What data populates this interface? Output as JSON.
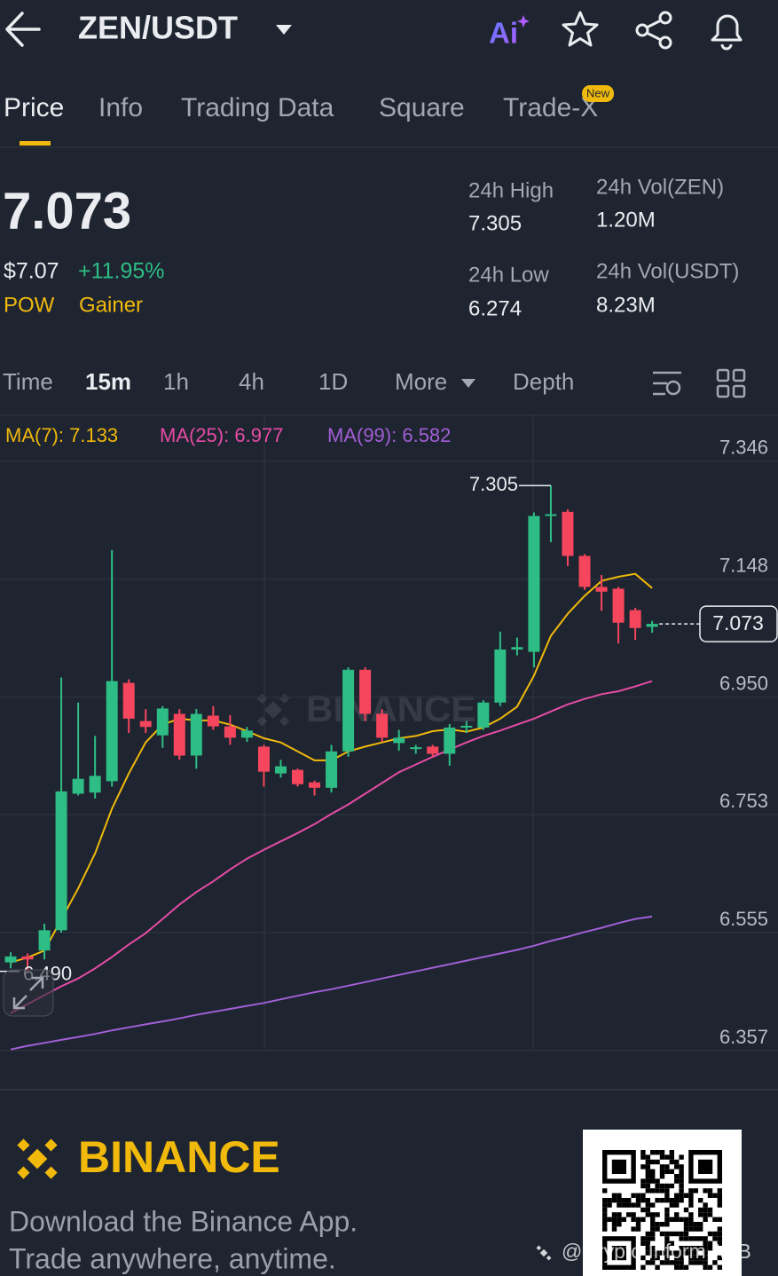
{
  "header": {
    "pair": "ZEN/USDT",
    "ai_label": "Ai"
  },
  "tabs": [
    "Price",
    "Info",
    "Trading Data",
    "Square",
    "Trade-X"
  ],
  "tab_badge": "New",
  "stats": {
    "price": "7.073",
    "fiat_price": "$7.07",
    "change": "+11.95%",
    "tags": [
      "POW",
      "Gainer"
    ],
    "high": {
      "label": "24h High",
      "value": "7.305"
    },
    "low": {
      "label": "24h Low",
      "value": "6.274"
    },
    "vol_base": {
      "label": "24h Vol(ZEN)",
      "value": "1.20M"
    },
    "vol_quote": {
      "label": "24h Vol(USDT)",
      "value": "8.23M"
    }
  },
  "intervals": [
    "Time",
    "15m",
    "1h",
    "4h",
    "1D",
    "More",
    "Depth"
  ],
  "chart_data": {
    "type": "candlestick",
    "watermark": "BINANCE",
    "up_color": "#2ebd85",
    "down_color": "#f6465d",
    "open": [
      6.505,
      6.515,
      6.525,
      6.559,
      6.788,
      6.79,
      6.809,
      6.974,
      6.91,
      6.886,
      6.922,
      6.852,
      6.919,
      6.901,
      6.882,
      6.867,
      6.822,
      6.828,
      6.807,
      6.798,
      6.859,
      6.996,
      6.922,
      6.873,
      6.863,
      6.867,
      6.855,
      6.899,
      6.899,
      6.941,
      7.03,
      7.026,
      7.254,
      7.261,
      7.187,
      7.135,
      7.132,
      7.096,
      7.068
    ],
    "high": [
      6.522,
      6.52,
      6.57,
      6.983,
      6.941,
      6.885,
      7.197,
      6.98,
      6.93,
      6.935,
      6.93,
      6.93,
      6.935,
      6.92,
      6.9,
      6.87,
      6.845,
      6.83,
      6.81,
      6.87,
      7.0,
      7.0,
      6.93,
      6.895,
      6.87,
      6.87,
      6.905,
      6.91,
      6.945,
      7.06,
      7.05,
      7.26,
      7.305,
      7.265,
      7.19,
      7.155,
      7.135,
      7.1,
      7.078
    ],
    "low": [
      6.495,
      6.49,
      6.51,
      6.555,
      6.785,
      6.78,
      6.8,
      6.89,
      6.89,
      6.865,
      6.845,
      6.83,
      6.895,
      6.87,
      6.875,
      6.8,
      6.815,
      6.8,
      6.785,
      6.79,
      6.85,
      6.91,
      6.875,
      6.86,
      6.855,
      6.85,
      6.835,
      6.89,
      6.895,
      6.935,
      7.02,
      7.0,
      7.21,
      7.17,
      7.13,
      7.095,
      7.04,
      7.046,
      7.058
    ],
    "close": [
      6.515,
      6.51,
      6.559,
      6.792,
      6.813,
      6.818,
      6.977,
      6.914,
      6.9,
      6.931,
      6.852,
      6.922,
      6.901,
      6.882,
      6.894,
      6.825,
      6.834,
      6.804,
      6.798,
      6.859,
      6.996,
      6.922,
      6.882,
      6.882,
      6.866,
      6.855,
      6.899,
      6.902,
      6.941,
      7.03,
      7.034,
      7.254,
      7.257,
      7.187,
      7.135,
      7.127,
      7.075,
      7.066,
      7.073
    ],
    "series": [
      {
        "name": "MA(7): 7.133",
        "color": "#f0b90b",
        "values": [
          6.505,
          6.513,
          6.525,
          6.577,
          6.629,
          6.688,
          6.763,
          6.822,
          6.874,
          6.904,
          6.914,
          6.911,
          6.911,
          6.904,
          6.893,
          6.881,
          6.874,
          6.859,
          6.844,
          6.844,
          6.859,
          6.867,
          6.874,
          6.881,
          6.885,
          6.893,
          6.896,
          6.892,
          6.899,
          6.914,
          6.934,
          6.986,
          7.053,
          7.09,
          7.12,
          7.145,
          7.152,
          7.157,
          7.133
        ]
      },
      {
        "name": "MA(25): 6.977",
        "color": "#e64ca6",
        "values": [
          6.42,
          6.435,
          6.45,
          6.465,
          6.478,
          6.495,
          6.514,
          6.535,
          6.554,
          6.578,
          6.602,
          6.623,
          6.641,
          6.661,
          6.679,
          6.694,
          6.708,
          6.722,
          6.737,
          6.754,
          6.77,
          6.788,
          6.806,
          6.824,
          6.837,
          6.85,
          6.862,
          6.874,
          6.885,
          6.894,
          6.904,
          6.914,
          6.926,
          6.938,
          6.947,
          6.955,
          6.96,
          6.968,
          6.977
        ]
      },
      {
        "name": "MA(99): 6.582",
        "color": "#a25fd6",
        "values": [
          6.359,
          6.365,
          6.37,
          6.375,
          6.38,
          6.385,
          6.391,
          6.396,
          6.401,
          6.406,
          6.411,
          6.417,
          6.422,
          6.427,
          6.432,
          6.437,
          6.443,
          6.449,
          6.455,
          6.46,
          6.466,
          6.472,
          6.478,
          6.484,
          6.49,
          6.496,
          6.502,
          6.508,
          6.514,
          6.52,
          6.526,
          6.533,
          6.541,
          6.548,
          6.556,
          6.563,
          6.571,
          6.578,
          6.582
        ]
      }
    ],
    "ylim": [
      6.357,
      7.42
    ],
    "yticks": [
      7.346,
      7.148,
      {
        "value": 6.95,
        "label": "6.950"
      },
      6.753,
      6.555,
      6.357
    ],
    "grid": true,
    "high_marker": {
      "value": 7.305,
      "label": "7.305"
    },
    "low_marker": {
      "value": 6.49,
      "label": "6.490"
    },
    "last_price": {
      "value": 7.073,
      "label": "7.073"
    }
  },
  "footer": {
    "brand": "BINANCE",
    "line1": "Download the Binance App.",
    "line2": "Trade anywhere, anytime.",
    "credit": "@Crypto Inform AAB"
  }
}
